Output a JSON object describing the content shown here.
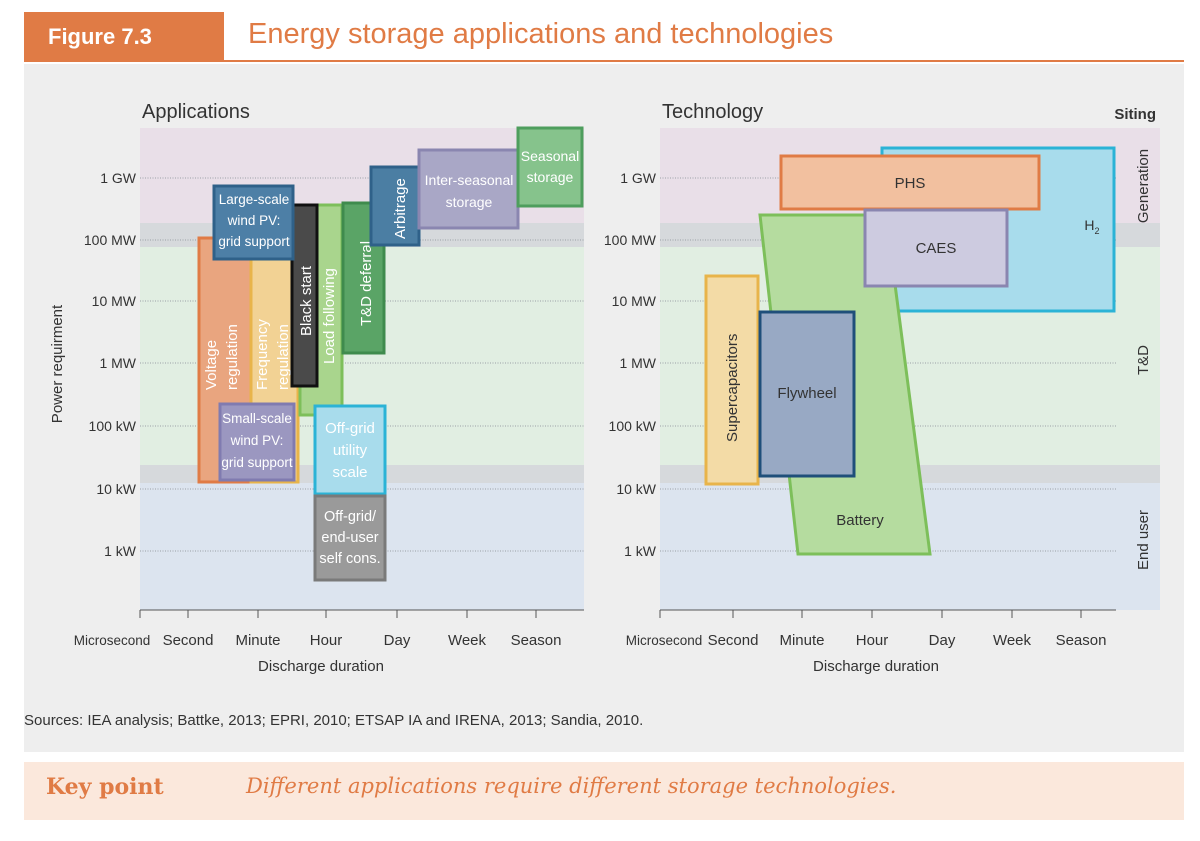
{
  "header": {
    "figure_label": "Figure 7.3",
    "title": "Energy storage applications and technologies"
  },
  "left_panel": {
    "title": "Applications",
    "y_axis_label": "Power requirment",
    "x_axis_label": "Discharge duration",
    "y_ticks": [
      "1 GW",
      "100 MW",
      "10 MW",
      "1 MW",
      "100 kW",
      "10 kW",
      "1 kW"
    ],
    "x_ticks": [
      "Microsecond",
      "Second",
      "Minute",
      "Hour",
      "Day",
      "Week",
      "Season"
    ],
    "boxes": [
      {
        "lines": [
          "Voltage",
          "regulation"
        ],
        "fill": "#e9a57f",
        "stroke": "#e07b45"
      },
      {
        "lines": [
          "Frequency",
          "regulation"
        ],
        "fill": "#f2d294",
        "stroke": "#e8b44a"
      },
      {
        "lines": [
          "Load following"
        ],
        "fill": "#a9d58d",
        "stroke": "#7dbf5a"
      },
      {
        "lines": [
          "Black start"
        ],
        "fill": "#4a4a4a",
        "stroke": "#111111"
      },
      {
        "lines": [
          "T&D deferral"
        ],
        "fill": "#5aa466",
        "stroke": "#3f8b4d"
      },
      {
        "lines": [
          "Arbitrage"
        ],
        "fill": "#4b7ea3",
        "stroke": "#2f6189"
      },
      {
        "lines": [
          "Inter-seasonal",
          "storage"
        ],
        "fill": "#a9a7c6",
        "stroke": "#8a86b0"
      },
      {
        "lines": [
          "Seasonal",
          "storage"
        ],
        "fill": "#86c38c",
        "stroke": "#4e9e5d"
      },
      {
        "lines": [
          "Large-scale",
          "wind PV:",
          "grid support"
        ],
        "fill": "#4d7fa6",
        "stroke": "#2f6189"
      },
      {
        "lines": [
          "Small-scale",
          "wind PV:",
          "grid support"
        ],
        "fill": "#9b97c0",
        "stroke": "#807bb0"
      },
      {
        "lines": [
          "Off-grid",
          "utility",
          "scale"
        ],
        "fill": "#a8dcec",
        "stroke": "#2bb3d6"
      },
      {
        "lines": [
          "Off-grid/",
          "end-user",
          "self cons."
        ],
        "fill": "#9a9a9a",
        "stroke": "#7a7a7a"
      }
    ]
  },
  "right_panel": {
    "title": "Technology",
    "siting_label": "Siting",
    "siting_bands": [
      "Generation",
      "T&D",
      "End user"
    ],
    "x_axis_label": "Discharge duration",
    "y_ticks": [
      "1 GW",
      "100 MW",
      "10 MW",
      "1 MW",
      "100 kW",
      "10 kW",
      "1 kW"
    ],
    "x_ticks": [
      "Microsecond",
      "Second",
      "Minute",
      "Hour",
      "Day",
      "Week",
      "Season"
    ],
    "technologies": [
      {
        "label": "H",
        "subscript": "2",
        "fill": "#a8dcec",
        "stroke": "#2bb3d6"
      },
      {
        "label": "PHS",
        "fill": "#f2c09f",
        "stroke": "#e07b45"
      },
      {
        "label": "CAES",
        "fill": "#cdcbe0",
        "stroke": "#8a86b0"
      },
      {
        "label": "Battery",
        "fill": "#b5dc9f",
        "stroke": "#7dbf5a"
      },
      {
        "label": "Supercapacitors",
        "fill": "#f3dba6",
        "stroke": "#e8b44a"
      },
      {
        "label": "Flywheel",
        "fill": "#98a9c4",
        "stroke": "#1f4f7a"
      }
    ]
  },
  "sources": "Sources: IEA analysis; Battke, 2013; EPRI, 2010; ETSAP IA and IRENA, 2013; Sandia, 2010.",
  "key_point": {
    "label": "Key point",
    "text": "Different applications require different storage technologies."
  }
}
